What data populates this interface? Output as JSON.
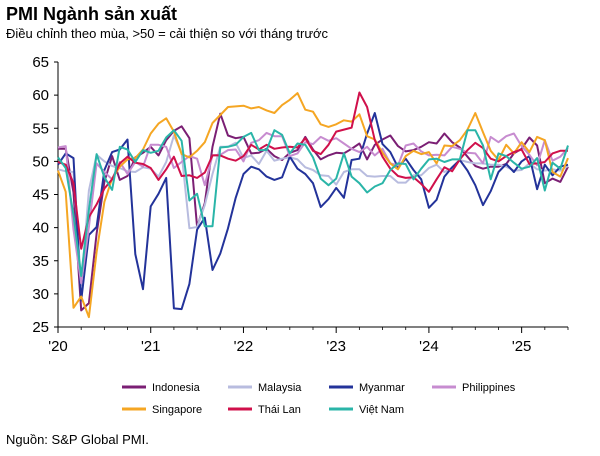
{
  "title": "PMI Ngành sản xuất",
  "subtitle": "Điều chỉnh theo mùa, >50 = cải thiện so với tháng trước",
  "source": "Nguồn: S&P Global PMI.",
  "chart_data": {
    "type": "line",
    "ylim": [
      25,
      65
    ],
    "yticks": [
      25,
      30,
      35,
      40,
      45,
      50,
      55,
      60,
      65
    ],
    "xtick_labels": [
      "'20",
      "'21",
      "'22",
      "'23",
      "'24",
      "'25"
    ],
    "x_start": "2020-01",
    "x_end": "2025-07",
    "grid": false,
    "legend_position": "bottom",
    "series": [
      {
        "name": "Indonesia",
        "color": "#7b1f74",
        "values": [
          51.9,
          51.9,
          45.3,
          27.5,
          28.6,
          39.1,
          46.9,
          50.8,
          47.2,
          47.8,
          50.6,
          51.3,
          52.2,
          50.9,
          53.2,
          54.6,
          55.3,
          53.5,
          40.1,
          43.7,
          52.2,
          57.2,
          53.9,
          53.5,
          53.7,
          51.2,
          51.3,
          51.9,
          50.8,
          50.2,
          51.3,
          51.7,
          53.7,
          51.8,
          50.3,
          50.9,
          51.3,
          51.2,
          51.9,
          52.7,
          50.3,
          52.5,
          53.3,
          53.9,
          52.3,
          51.5,
          51.7,
          52.2,
          52.9,
          52.7,
          54.2,
          52.9,
          52.1,
          50.7,
          49.3,
          48.9,
          49.2,
          49.2,
          49.6,
          51.2,
          51.9,
          53.6,
          52.4,
          46.7,
          47.4,
          46.9,
          49.2
        ]
      },
      {
        "name": "Malaysia",
        "color": "#b8bcdf",
        "values": [
          48.8,
          48.5,
          48.4,
          31.3,
          45.6,
          51.0,
          50.0,
          49.3,
          49.0,
          48.5,
          48.4,
          49.1,
          48.9,
          47.7,
          49.9,
          53.9,
          51.3,
          39.9,
          40.1,
          43.4,
          48.1,
          52.2,
          52.2,
          52.8,
          50.5,
          50.9,
          49.6,
          51.6,
          50.1,
          50.4,
          50.6,
          50.3,
          49.1,
          48.7,
          47.9,
          47.8,
          46.5,
          48.4,
          48.8,
          48.8,
          47.8,
          47.7,
          47.8,
          47.8,
          46.8,
          46.8,
          47.9,
          47.9,
          49.0,
          49.5,
          48.4,
          49.0,
          50.2,
          49.9,
          49.7,
          49.7,
          49.5,
          49.5,
          49.2,
          48.6,
          48.7,
          49.7,
          48.8,
          48.6,
          48.8,
          48.6,
          49.3
        ]
      },
      {
        "name": "Myanmar",
        "color": "#23339a",
        "values": [
          49.5,
          51.2,
          50.5,
          29.0,
          38.9,
          40.1,
          48.7,
          51.4,
          51.8,
          53.3,
          36.0,
          30.7,
          43.2,
          45.1,
          47.5,
          27.8,
          27.7,
          31.5,
          39.7,
          41.5,
          33.6,
          36.1,
          39.9,
          44.5,
          48.1,
          49.2,
          48.8,
          47.7,
          47.2,
          47.6,
          50.7,
          48.9,
          48.1,
          46.7,
          43.1,
          44.3,
          46.0,
          44.5,
          50.2,
          50.4,
          54.2,
          57.3,
          52.6,
          51.4,
          49.1,
          50.4,
          48.7,
          47.3,
          43.0,
          44.2,
          47.7,
          49.1,
          50.2,
          48.6,
          46.4,
          43.4,
          45.5,
          48.4,
          49.6,
          48.4,
          50.0,
          50.8,
          45.8,
          49.5,
          47.9,
          49.2,
          49.5
        ]
      },
      {
        "name": "Philippines",
        "color": "#c78cd0",
        "values": [
          52.1,
          52.3,
          39.7,
          31.6,
          40.1,
          49.7,
          48.4,
          47.3,
          49.9,
          48.1,
          49.9,
          49.2,
          52.5,
          52.5,
          52.2,
          49.0,
          49.9,
          50.8,
          50.4,
          46.4,
          50.9,
          51.0,
          51.7,
          51.8,
          50.0,
          52.8,
          53.2,
          54.3,
          53.8,
          53.8,
          50.8,
          51.2,
          52.9,
          52.6,
          53.7,
          53.1,
          53.5,
          52.7,
          51.9,
          51.4,
          52.2,
          50.9,
          51.9,
          49.7,
          49.4,
          52.4,
          52.7,
          51.5,
          50.9,
          51.0,
          50.9,
          52.2,
          51.9,
          51.3,
          51.2,
          49.7,
          53.7,
          52.9,
          53.8,
          54.2,
          52.3,
          51.0,
          49.4,
          53.2,
          50.1,
          50.7,
          52.0
        ]
      },
      {
        "name": "Singapore",
        "color": "#f5a623",
        "values": [
          48.6,
          45.4,
          27.9,
          29.6,
          26.5,
          36.3,
          43.9,
          47.4,
          49.2,
          50.3,
          50.5,
          51.8,
          54.2,
          55.7,
          56.5,
          54.5,
          51.1,
          50.6,
          51.6,
          52.9,
          55.8,
          57.0,
          58.2,
          58.3,
          58.4,
          58.0,
          58.2,
          57.7,
          57.3,
          58.5,
          59.3,
          60.3,
          57.8,
          57.5,
          55.6,
          55.2,
          55.6,
          56.2,
          56.0,
          57.1,
          53.8,
          53.3,
          51.3,
          49.7,
          48.8,
          50.8,
          51.6,
          51.1,
          51.4,
          49.7,
          52.4,
          52.3,
          53.2,
          54.8,
          57.3,
          54.4,
          51.6,
          50.2,
          52.5,
          51.2,
          52.9,
          51.4,
          53.7,
          53.2,
          48.4,
          47.7,
          50.5
        ]
      },
      {
        "name": "Thái Lan",
        "color": "#d0104b",
        "values": [
          49.9,
          49.5,
          46.7,
          36.8,
          41.6,
          43.5,
          45.9,
          47.3,
          49.7,
          50.7,
          49.8,
          49.6,
          49.0,
          47.2,
          48.8,
          50.7,
          47.8,
          47.9,
          47.5,
          48.3,
          50.9,
          50.9,
          50.4,
          50.1,
          50.8,
          52.5,
          51.8,
          52.5,
          51.9,
          52.1,
          52.2,
          52.1,
          53.5,
          51.6,
          51.1,
          52.5,
          54.5,
          54.8,
          55.1,
          60.4,
          58.2,
          53.2,
          50.7,
          48.9,
          47.8,
          47.5,
          47.6,
          46.6,
          45.4,
          47.3,
          49.1,
          48.5,
          50.3,
          51.7,
          52.8,
          52.0,
          50.4,
          50.0,
          50.8,
          51.4,
          51.8,
          49.6,
          49.7,
          49.9,
          51.2,
          51.6,
          51.6
        ]
      },
      {
        "name": "Việt Nam",
        "color": "#2ab5a8",
        "values": [
          50.6,
          49.0,
          41.9,
          32.7,
          42.7,
          51.1,
          47.6,
          45.7,
          52.2,
          51.8,
          49.9,
          51.7,
          51.3,
          51.6,
          53.6,
          54.7,
          53.1,
          44.1,
          45.1,
          40.2,
          40.2,
          52.1,
          52.2,
          52.5,
          53.7,
          54.3,
          51.7,
          51.7,
          54.7,
          54.0,
          51.2,
          52.7,
          52.5,
          50.6,
          47.4,
          46.4,
          47.4,
          51.2,
          47.7,
          46.7,
          45.3,
          46.2,
          46.7,
          48.7,
          49.7,
          49.6,
          47.3,
          48.9,
          50.3,
          50.4,
          49.9,
          50.3,
          50.3,
          54.7,
          54.7,
          52.4,
          47.3,
          51.2,
          50.8,
          49.8,
          48.9,
          49.2,
          50.5,
          45.6,
          49.8,
          48.9,
          52.4
        ]
      }
    ]
  }
}
